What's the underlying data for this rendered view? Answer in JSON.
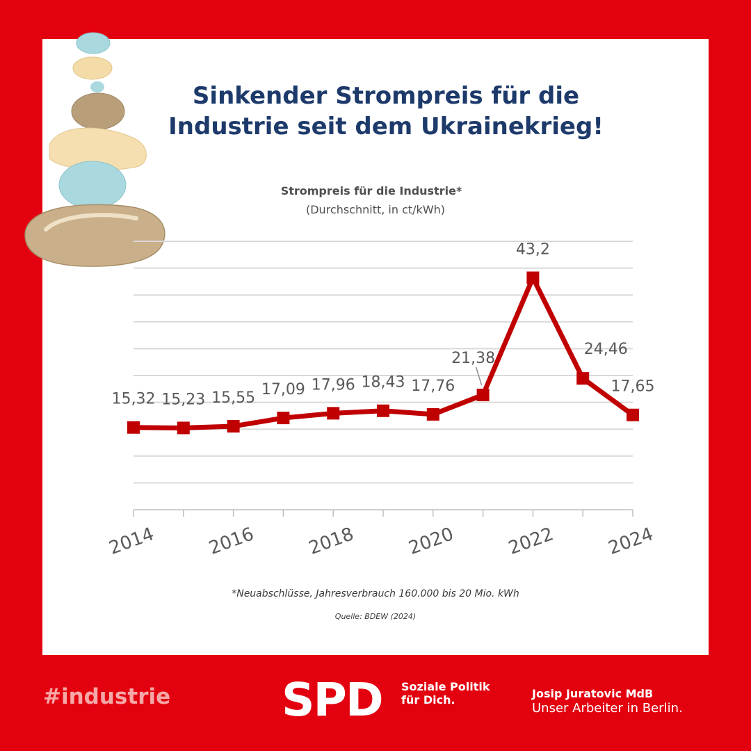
{
  "headline": "Sinkender Strompreis für die Industrie seit dem Ukrainekrieg!",
  "footnote": "*Neuabschlüsse, Jahresverbrauch 160.000 bis 20 Mio. kWh",
  "source": "Quelle: BDEW (2024)",
  "footer": {
    "hashtag": "#industrie",
    "logo": "SPD",
    "slogan": "Soziale Politik für Dich.",
    "author_name": "Josip Juratovic MdB",
    "author_tagline": "Unser Arbeiter in Berlin."
  },
  "colors": {
    "brand_red": "#e3000f",
    "line": "#c00000",
    "headline_blue": "#1d3a6b"
  },
  "chart_data": {
    "type": "line",
    "title": "Strompreis für die Industrie*",
    "subtitle": "(Durchschnitt, in ct/kWh)",
    "x": [
      2014,
      2015,
      2016,
      2017,
      2018,
      2019,
      2020,
      2021,
      2022,
      2023,
      2024
    ],
    "x_tick_labels": [
      "2014",
      "2016",
      "2018",
      "2020",
      "2022",
      "2024"
    ],
    "series": [
      {
        "values": [
          15.32,
          15.23,
          15.55,
          17.09,
          17.96,
          18.43,
          17.76,
          21.38,
          43.2,
          24.46,
          17.65
        ],
        "labels": [
          "15,32",
          "15,23",
          "15,55",
          "17,09",
          "17,96",
          "18,43",
          "17,76",
          "21,38",
          "43,2",
          "24,46",
          "17,65"
        ]
      }
    ],
    "ylim": [
      0,
      50
    ],
    "grid": true,
    "legend": "none"
  }
}
